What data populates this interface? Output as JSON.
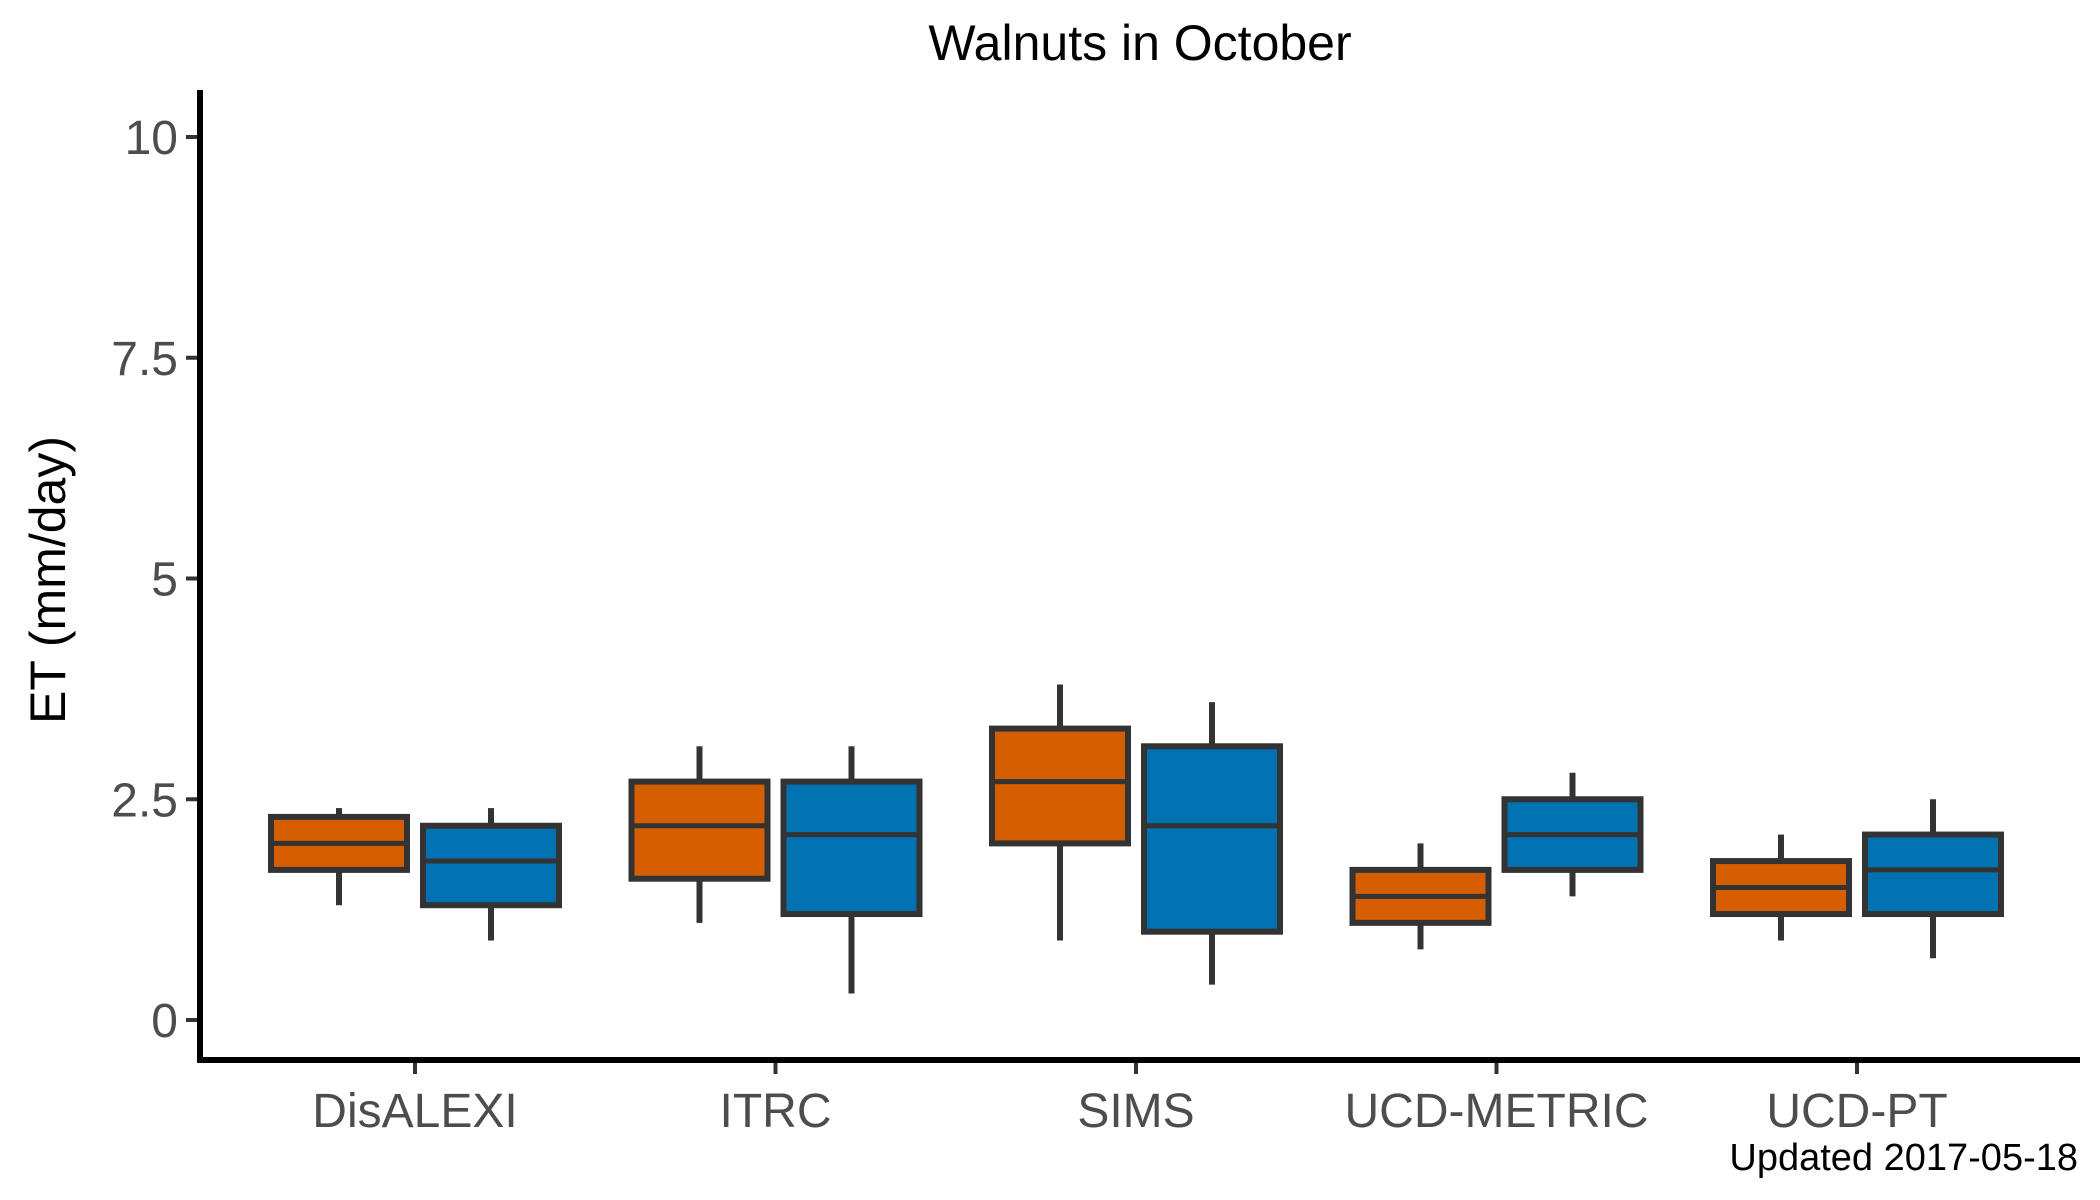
{
  "chart_data": {
    "type": "box",
    "title": "Walnuts in October",
    "xlabel": "",
    "ylabel": "ET (mm/day)",
    "ylim": [
      -0.5,
      10.5
    ],
    "yticks": [
      0,
      2.5,
      5,
      7.5,
      10
    ],
    "ytick_labels": [
      "0",
      "2.5",
      "5",
      "7.5",
      "10"
    ],
    "categories": [
      "DisALEXI",
      "ITRC",
      "SIMS",
      "UCD-METRIC",
      "UCD-PT"
    ],
    "grid": false,
    "legend": "none",
    "series": [
      {
        "color": "#D55E00",
        "boxes": [
          {
            "min": 1.3,
            "q1": 1.7,
            "median": 2.0,
            "q3": 2.3,
            "max": 2.4
          },
          {
            "min": 1.1,
            "q1": 1.6,
            "median": 2.2,
            "q3": 2.7,
            "max": 3.1
          },
          {
            "min": 0.9,
            "q1": 2.0,
            "median": 2.7,
            "q3": 3.3,
            "max": 3.8
          },
          {
            "min": 0.8,
            "q1": 1.1,
            "median": 1.4,
            "q3": 1.7,
            "max": 2.0
          },
          {
            "min": 0.9,
            "q1": 1.2,
            "median": 1.5,
            "q3": 1.8,
            "max": 2.1
          }
        ]
      },
      {
        "color": "#0072B2",
        "boxes": [
          {
            "min": 0.9,
            "q1": 1.3,
            "median": 1.8,
            "q3": 2.2,
            "max": 2.4
          },
          {
            "min": 0.3,
            "q1": 1.2,
            "median": 2.1,
            "q3": 2.7,
            "max": 3.1
          },
          {
            "min": 0.4,
            "q1": 1.0,
            "median": 2.2,
            "q3": 3.1,
            "max": 3.6
          },
          {
            "min": 1.4,
            "q1": 1.7,
            "median": 2.1,
            "q3": 2.5,
            "max": 2.8
          },
          {
            "min": 0.7,
            "q1": 1.2,
            "median": 1.7,
            "q3": 2.1,
            "max": 2.5
          }
        ]
      }
    ],
    "caption": "Updated  2017-05-18"
  }
}
